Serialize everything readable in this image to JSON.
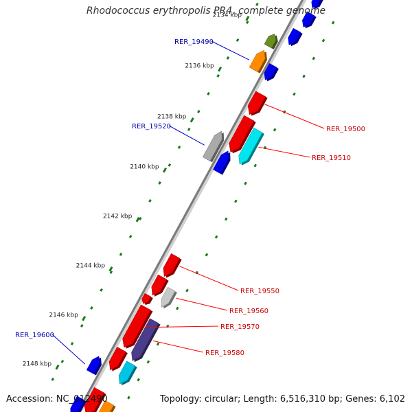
{
  "title": "Rhodococcus erythropolis PR4, complete genome",
  "footer": {
    "accession": "Accession: NC_012490",
    "summary": "Topology: circular; Length: 6,516,310 bp; Genes: 6,102"
  },
  "colors": {
    "backbone": "#8a8a8a",
    "tick": "#1a7a1a",
    "label_forward": "#cc0000",
    "label_reverse": "#0000aa",
    "leader_forward": "#ff0000",
    "leader_reverse": "#0000cc"
  },
  "ticks": [
    {
      "label": "2134 kbp"
    },
    {
      "label": "2136 kbp"
    },
    {
      "label": "2138 kbp"
    },
    {
      "label": "2140 kbp"
    },
    {
      "label": "2142 kbp"
    },
    {
      "label": "2144 kbp"
    },
    {
      "label": "2146 kbp"
    },
    {
      "label": "2148 kbp"
    }
  ],
  "genes": [
    {
      "strand": "forward",
      "color": "#0000ee",
      "label": ""
    },
    {
      "strand": "forward",
      "color": "#0000ee",
      "label": ""
    },
    {
      "strand": "forward",
      "color": "#0000ee",
      "label": ""
    },
    {
      "strand": "reverse",
      "color": "#6b8e23",
      "label": ""
    },
    {
      "strand": "reverse",
      "color": "#ff8c00",
      "label": "RER_19490"
    },
    {
      "strand": "forward",
      "color": "#0000ee",
      "label": ""
    },
    {
      "strand": "forward",
      "color": "#ee0000",
      "label": "RER_19500"
    },
    {
      "strand": "forward",
      "color": "#ee0000",
      "label": ""
    },
    {
      "strand": "forward",
      "color": "#00e5ee",
      "label": "RER_19510"
    },
    {
      "strand": "reverse",
      "color": "#aaaaaa",
      "label": "RER_19520"
    },
    {
      "strand": "reverse",
      "color": "#0000ee",
      "label": ""
    },
    {
      "strand": "forward",
      "color": "#ee0000",
      "label": "RER_19550"
    },
    {
      "strand": "forward",
      "color": "#ee0000",
      "label": ""
    },
    {
      "strand": "forward",
      "color": "#c8c8c8",
      "label": "RER_19560"
    },
    {
      "strand": "forward",
      "color": "#ee0000",
      "label": ""
    },
    {
      "strand": "forward",
      "color": "#ee0000",
      "label": "RER_19570"
    },
    {
      "strand": "forward",
      "color": "#4b3d8c",
      "label": "RER_19580"
    },
    {
      "strand": "forward",
      "color": "#ee0000",
      "label": ""
    },
    {
      "strand": "forward",
      "color": "#00c5e5",
      "label": ""
    },
    {
      "strand": "reverse",
      "color": "#0000ee",
      "label": "RER_19600"
    },
    {
      "strand": "forward",
      "color": "#ee0000",
      "label": ""
    },
    {
      "strand": "forward",
      "color": "#ff8c00",
      "label": ""
    },
    {
      "strand": "forward",
      "color": "#0000ee",
      "label": ""
    }
  ]
}
